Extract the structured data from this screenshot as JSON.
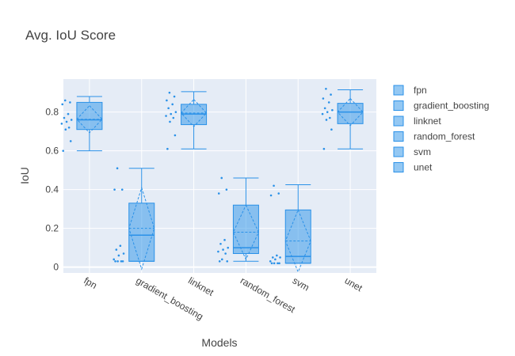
{
  "chart_data": {
    "type": "box",
    "title": "Avg. IoU Score",
    "xlabel": "Models",
    "ylabel": "IoU",
    "categories": [
      "fpn",
      "gradient_boosting",
      "linknet",
      "random_forest",
      "svm",
      "unet"
    ],
    "ylim": [
      -0.03,
      0.97
    ],
    "yticks": [
      0,
      0.2,
      0.4,
      0.6,
      0.8
    ],
    "ytick_labels": [
      "0",
      "0.2",
      "0.4",
      "0.6",
      "0.8"
    ],
    "grid": true,
    "legend_position": "right",
    "box_color": "#2a91e8",
    "plot_bg": "#e5ecf6",
    "series": [
      {
        "name": "fpn",
        "min": 0.6,
        "q1": 0.71,
        "median": 0.76,
        "q3": 0.85,
        "max": 0.88,
        "mean": 0.763,
        "sd": 0.07,
        "points": [
          0.86,
          0.85,
          0.84,
          0.79,
          0.77,
          0.76,
          0.75,
          0.74,
          0.72,
          0.71,
          0.65,
          0.6
        ]
      },
      {
        "name": "gradient_boosting",
        "min": 0.03,
        "q1": 0.03,
        "median": 0.165,
        "q3": 0.33,
        "max": 0.51,
        "mean": 0.2,
        "sd": 0.21,
        "points": [
          0.51,
          0.4,
          0.4,
          0.11,
          0.09,
          0.07,
          0.06,
          0.04,
          0.03,
          0.03,
          0.03,
          0.03
        ]
      },
      {
        "name": "linknet",
        "min": 0.61,
        "q1": 0.735,
        "median": 0.79,
        "q3": 0.84,
        "max": 0.905,
        "mean": 0.795,
        "sd": 0.07,
        "points": [
          0.9,
          0.88,
          0.86,
          0.84,
          0.82,
          0.8,
          0.79,
          0.78,
          0.77,
          0.75,
          0.68,
          0.61
        ]
      },
      {
        "name": "random_forest",
        "min": 0.03,
        "q1": 0.07,
        "median": 0.1,
        "q3": 0.32,
        "max": 0.46,
        "mean": 0.18,
        "sd": 0.14,
        "points": [
          0.46,
          0.4,
          0.38,
          0.14,
          0.12,
          0.1,
          0.09,
          0.08,
          0.07,
          0.04,
          0.03,
          0.03
        ]
      },
      {
        "name": "svm",
        "min": 0.02,
        "q1": 0.02,
        "median": 0.055,
        "q3": 0.295,
        "max": 0.425,
        "mean": 0.135,
        "sd": 0.16,
        "points": [
          0.42,
          0.38,
          0.37,
          0.06,
          0.05,
          0.05,
          0.04,
          0.03,
          0.02,
          0.02,
          0.02,
          0.02
        ]
      },
      {
        "name": "unet",
        "min": 0.61,
        "q1": 0.74,
        "median": 0.8,
        "q3": 0.845,
        "max": 0.915,
        "mean": 0.8,
        "sd": 0.07,
        "points": [
          0.92,
          0.89,
          0.87,
          0.85,
          0.82,
          0.81,
          0.8,
          0.79,
          0.77,
          0.76,
          0.71,
          0.61
        ]
      }
    ]
  }
}
